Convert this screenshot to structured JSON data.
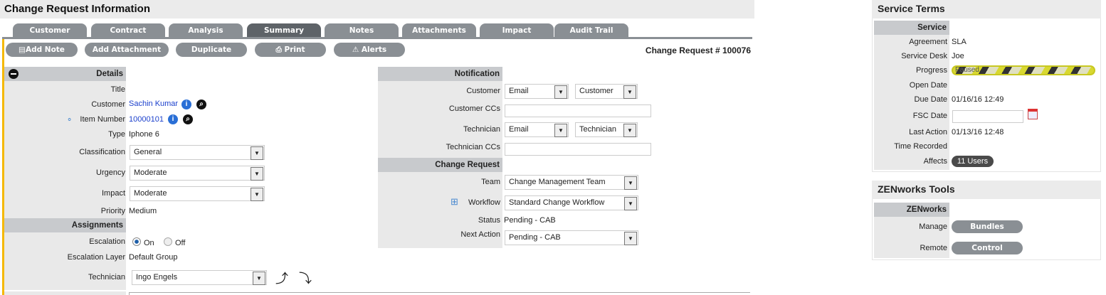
{
  "header": {
    "title": "Change Request Information"
  },
  "tabs": [
    {
      "label": "Customer"
    },
    {
      "label": "Contract"
    },
    {
      "label": "Analysis"
    },
    {
      "label": "Summary",
      "active": true
    },
    {
      "label": "Notes"
    },
    {
      "label": "Attachments"
    },
    {
      "label": "Impact"
    },
    {
      "label": "Audit Trail"
    }
  ],
  "toolbar": {
    "add_note": "Add Note",
    "add_attachment": "Add Attachment",
    "duplicate": "Duplicate",
    "print": "Print",
    "alerts": "Alerts",
    "request_number": "Change Request # 100076"
  },
  "details": {
    "header": "Details",
    "title_label": "Title",
    "customer_label": "Customer",
    "customer_value": "Sachin Kumar",
    "item_label": "Item Number",
    "item_value": "10000101",
    "type_label": "Type",
    "type_value": "Iphone 6",
    "classification_label": "Classification",
    "classification_value": "General",
    "urgency_label": "Urgency",
    "urgency_value": "Moderate",
    "impact_label": "Impact",
    "impact_value": "Moderate",
    "priority_label": "Priority",
    "priority_value": "Medium"
  },
  "assignments": {
    "header": "Assignments",
    "escalation_label": "Escalation",
    "on_label": "On",
    "off_label": "Off",
    "escalation_value": "On",
    "layer_label": "Escalation Layer",
    "layer_value": "Default Group",
    "technician_label": "Technician",
    "technician_value": "Ingo Engels"
  },
  "notification": {
    "header": "Notification",
    "customer_label": "Customer",
    "customer_method": "Email",
    "customer_target": "Customer",
    "customer_ccs_label": "Customer CCs",
    "customer_ccs_value": "",
    "technician_label": "Technician",
    "technician_method": "Email",
    "technician_target": "Technician",
    "technician_ccs_label": "Technician CCs",
    "technician_ccs_value": ""
  },
  "change_request": {
    "header": "Change Request",
    "team_label": "Team",
    "team_value": "Change Management Team",
    "workflow_label": "Workflow",
    "workflow_value": "Standard Change Workflow",
    "status_label": "Status",
    "status_value": "Pending - CAB",
    "next_action_label": "Next Action",
    "next_action_value": "Pending - CAB"
  },
  "service_terms": {
    "title": "Service Terms",
    "section": "Service",
    "agreement_label": "Agreement",
    "agreement_value": "SLA",
    "desk_label": "Service Desk",
    "desk_value": "Joe",
    "progress_label": "Progress",
    "progress_text": "Paused",
    "open_label": "Open Date",
    "open_value": "",
    "due_label": "Due Date",
    "due_value": "01/16/16 12:49",
    "fsc_label": "FSC Date",
    "fsc_value": "",
    "last_label": "Last Action",
    "last_value": "01/13/16 12:48",
    "time_label": "Time Recorded",
    "time_value": "",
    "affects_label": "Affects",
    "affects_value": "11 Users"
  },
  "zenworks": {
    "title": "ZENworks Tools",
    "section": "ZENworks",
    "manage_label": "Manage",
    "manage_button": "Bundles",
    "remote_label": "Remote",
    "remote_button": "Control"
  },
  "colors": {
    "accent": "#f5b800",
    "button": "#8a8f94",
    "active_tab": "#5e6368",
    "link": "#1a3fcc"
  }
}
